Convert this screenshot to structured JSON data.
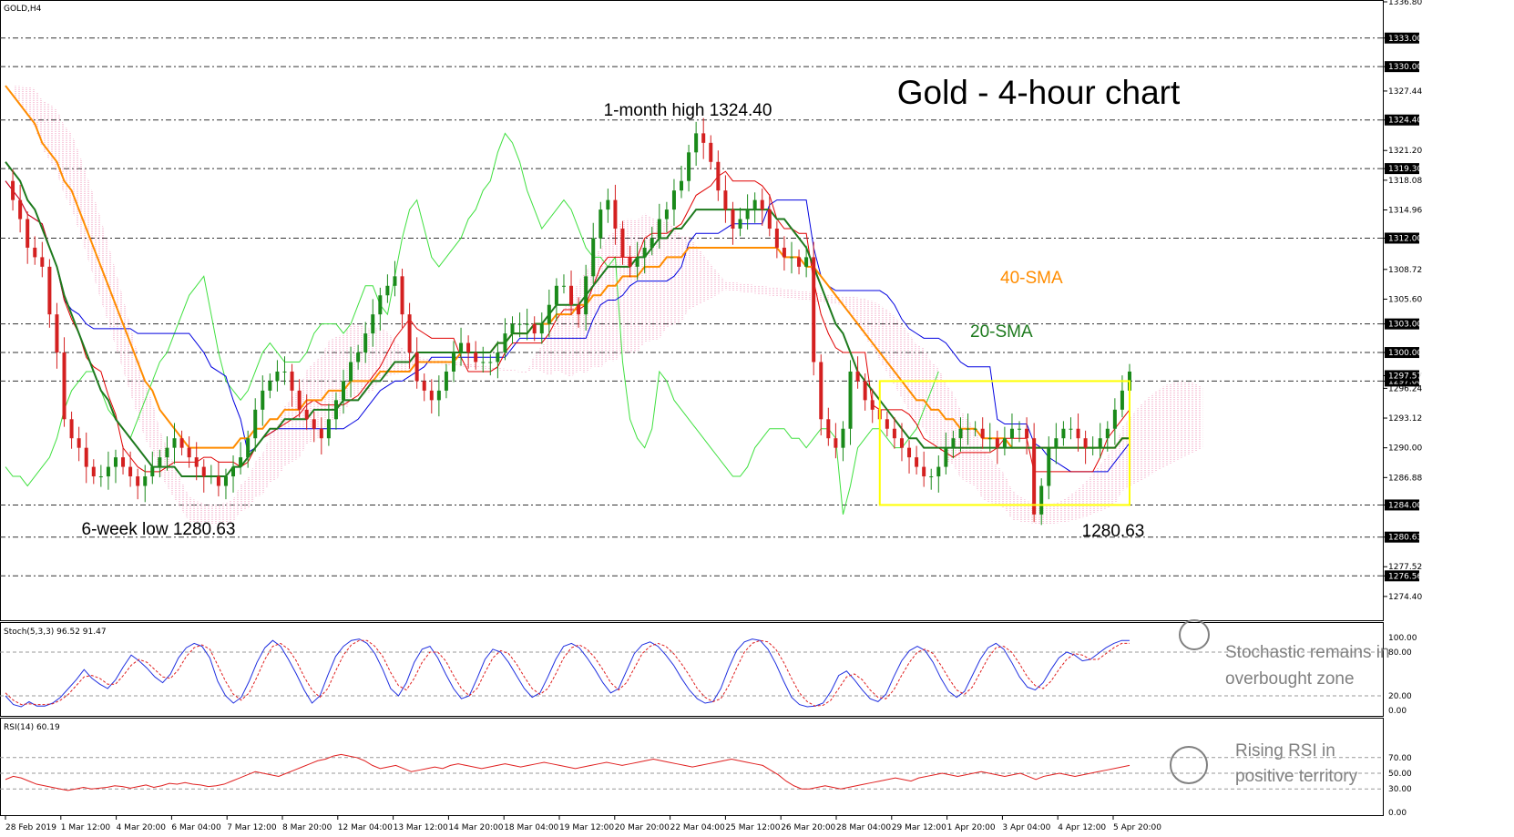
{
  "chart_data": [
    {
      "type": "candlestick",
      "symbol_label": "GOLD,H4",
      "title": "Gold - 4-hour chart",
      "ylim": [
        1272.0,
        1336.8
      ],
      "y_ticks": [
        "1336.80",
        "1333.00",
        "1330.00",
        "1327.44",
        "1324.40",
        "1321.20",
        "1319.30",
        "1318.08",
        "1314.96",
        "1312.00",
        "1308.72",
        "1305.60",
        "1303.00",
        "1300.00",
        "1297.57",
        "1297.00",
        "1296.24",
        "1293.12",
        "1290.00",
        "1286.88",
        "1284.00",
        "1280.63",
        "1277.52",
        "1276.56",
        "1274.40"
      ],
      "levels": [
        1333.0,
        1330.0,
        1324.4,
        1319.3,
        1312.0,
        1303.0,
        1300.0,
        1297.0,
        1284.0,
        1280.63,
        1276.56
      ],
      "x_labels": [
        "28 Feb 2019",
        "1 Mar 12:00",
        "4 Mar 20:00",
        "6 Mar 04:00",
        "7 Mar 12:00",
        "8 Mar 20:00",
        "12 Mar 04:00",
        "13 Mar 12:00",
        "14 Mar 20:00",
        "18 Mar 04:00",
        "19 Mar 12:00",
        "20 Mar 20:00",
        "22 Mar 04:00",
        "25 Mar 12:00",
        "26 Mar 20:00",
        "28 Mar 04:00",
        "29 Mar 12:00",
        "1 Apr 20:00",
        "3 Apr 04:00",
        "4 Apr 12:00",
        "5 Apr 20:00"
      ],
      "series": [
        {
          "name": "Close",
          "values": [
            1318,
            1316,
            1314,
            1311,
            1310,
            1309,
            1304,
            1300,
            1293,
            1291,
            1290,
            1288,
            1287,
            1287,
            1288,
            1289,
            1288,
            1287,
            1286,
            1287,
            1288,
            1289,
            1290,
            1291,
            1290,
            1289,
            1288,
            1287,
            1287,
            1286,
            1287,
            1288,
            1289,
            1291,
            1294,
            1296,
            1297,
            1298,
            1298,
            1296,
            1294,
            1293,
            1292,
            1291,
            1293,
            1295,
            1297,
            1299,
            1300,
            1302,
            1304,
            1306,
            1307,
            1308,
            1304,
            1300,
            1297,
            1296,
            1295,
            1296,
            1298,
            1300,
            1301,
            1300,
            1299,
            1299,
            1299,
            1300,
            1302,
            1303,
            1303,
            1303,
            1302,
            1303,
            1305,
            1307,
            1307,
            1305,
            1304,
            1308,
            1312,
            1315,
            1316,
            1313,
            1310,
            1309,
            1310,
            1311,
            1312,
            1314,
            1315,
            1317,
            1318,
            1321,
            1323,
            1322,
            1320,
            1317,
            1315,
            1313,
            1314,
            1315,
            1316,
            1315,
            1313,
            1311,
            1310,
            1310,
            1309,
            1310,
            1299,
            1293,
            1291,
            1290,
            1292,
            1298,
            1297,
            1295,
            1294,
            1293,
            1292,
            1291,
            1290,
            1289,
            1288,
            1287,
            1287,
            1288,
            1290,
            1291,
            1292,
            1292,
            1292,
            1291,
            1291,
            1290,
            1291,
            1292,
            1292,
            1291,
            1283,
            1286,
            1290,
            1291,
            1292,
            1292,
            1291,
            1290,
            1290,
            1291,
            1292,
            1294,
            1296,
            1298
          ]
        },
        {
          "name": "20-SMA",
          "values": [
            1320,
            1319,
            1318,
            1316,
            1315,
            1313,
            1311,
            1309,
            1306,
            1304,
            1302,
            1300,
            1298,
            1296,
            1295,
            1293,
            1292,
            1291,
            1290,
            1289,
            1288,
            1288,
            1288,
            1288,
            1287,
            1287,
            1287,
            1287,
            1287,
            1287,
            1287,
            1288,
            1288,
            1289,
            1290,
            1291,
            1292,
            1292,
            1293,
            1293,
            1293,
            1293,
            1294,
            1294,
            1294,
            1294,
            1295,
            1295,
            1295,
            1296,
            1297,
            1297,
            1298,
            1299,
            1299,
            1299,
            1300,
            1300,
            1300,
            1300,
            1300,
            1300,
            1300,
            1300,
            1300,
            1300,
            1300,
            1301,
            1301,
            1302,
            1302,
            1302,
            1303,
            1303,
            1304,
            1305,
            1305,
            1305,
            1305,
            1306,
            1307,
            1308,
            1309,
            1309,
            1309,
            1309,
            1310,
            1310,
            1311,
            1312,
            1312,
            1313,
            1313,
            1314,
            1315,
            1315,
            1315,
            1315,
            1315,
            1315,
            1315,
            1315,
            1315,
            1315,
            1315,
            1314,
            1314,
            1313,
            1312,
            1311,
            1309,
            1307,
            1305,
            1303,
            1302,
            1300,
            1298,
            1297,
            1296,
            1295,
            1294,
            1293,
            1292,
            1291,
            1291,
            1290,
            1290,
            1290,
            1290,
            1290,
            1290,
            1290,
            1290,
            1290,
            1290,
            1290,
            1290,
            1290,
            1290,
            1290,
            1290,
            1290,
            1290,
            1290,
            1290,
            1290,
            1290,
            1290,
            1290,
            1290,
            1290,
            1290,
            1291,
            1291
          ]
        },
        {
          "name": "40-SMA",
          "values": [
            1328,
            1327,
            1326,
            1325,
            1324,
            1322,
            1321,
            1320,
            1318,
            1317,
            1315,
            1313,
            1311,
            1309,
            1307,
            1305,
            1303,
            1301,
            1299,
            1297,
            1296,
            1294,
            1293,
            1292,
            1291,
            1290,
            1290,
            1290,
            1290,
            1290,
            1290,
            1290,
            1291,
            1291,
            1292,
            1292,
            1293,
            1293,
            1294,
            1294,
            1294,
            1295,
            1295,
            1295,
            1296,
            1296,
            1296,
            1297,
            1297,
            1297,
            1297,
            1298,
            1298,
            1298,
            1298,
            1298,
            1299,
            1299,
            1299,
            1299,
            1299,
            1299,
            1300,
            1300,
            1300,
            1300,
            1300,
            1301,
            1301,
            1302,
            1302,
            1302,
            1303,
            1303,
            1303,
            1304,
            1304,
            1304,
            1305,
            1305,
            1306,
            1306,
            1307,
            1307,
            1308,
            1308,
            1308,
            1309,
            1309,
            1309,
            1310,
            1310,
            1310,
            1311,
            1311,
            1311,
            1311,
            1311,
            1311,
            1311,
            1311,
            1311,
            1311,
            1311,
            1311,
            1311,
            1310,
            1310,
            1310,
            1309,
            1309,
            1308,
            1307,
            1306,
            1305,
            1304,
            1303,
            1302,
            1301,
            1300,
            1299,
            1298,
            1297,
            1296,
            1295,
            1295,
            1294,
            1294,
            1293,
            1293,
            1292,
            1292,
            1292,
            1291,
            1291,
            1291,
            1291,
            1290,
            1290,
            1290,
            1290,
            1290,
            1290,
            1290,
            1290,
            1290,
            1290,
            1290,
            1290,
            1290,
            1290,
            1290,
            1291,
            1291
          ]
        }
      ],
      "annotations": [
        {
          "text": "1-month high 1324.40"
        },
        {
          "text": "6-week low 1280.63"
        },
        {
          "text": "1280.63"
        },
        {
          "text": "40-SMA"
        },
        {
          "text": "20-SMA"
        }
      ],
      "range_box": {
        "from_index": 119,
        "to_index": 153,
        "y_low": 1284.0,
        "y_high": 1297.0,
        "color": "#ffff00"
      },
      "colors": {
        "up": "#1a8a1a",
        "down": "#d42020",
        "sma20": "#1e7a1e",
        "sma40": "#ff8c00",
        "tenkan": "#e00000",
        "kijun": "#0000e0",
        "chikou": "#40e040",
        "cloud_bull": "#7a7adc",
        "cloud_bear": "#f08cb4",
        "level_line": "#333333"
      },
      "current_price": "1297.57"
    },
    {
      "type": "line",
      "label": "Stoch(5,3,3) 96.52 91.47",
      "ylim": [
        0,
        100
      ],
      "y_ticks": [
        "100.00",
        "80.00",
        "20.00",
        "0.00"
      ],
      "series": [
        {
          "name": "%K",
          "values": [
            20,
            8,
            5,
            12,
            6,
            6,
            10,
            18,
            30,
            42,
            56,
            44,
            36,
            30,
            42,
            60,
            76,
            68,
            58,
            46,
            38,
            50,
            72,
            86,
            92,
            88,
            72,
            40,
            20,
            10,
            18,
            40,
            66,
            86,
            96,
            88,
            70,
            50,
            28,
            10,
            20,
            48,
            74,
            88,
            96,
            98,
            92,
            78,
            56,
            30,
            20,
            38,
            66,
            84,
            88,
            72,
            50,
            30,
            16,
            20,
            44,
            70,
            84,
            80,
            66,
            48,
            30,
            18,
            24,
            46,
            70,
            88,
            92,
            86,
            72,
            56,
            38,
            24,
            30,
            54,
            78,
            90,
            94,
            88,
            76,
            62,
            44,
            28,
            16,
            10,
            12,
            30,
            58,
            82,
            94,
            98,
            96,
            84,
            64,
            40,
            18,
            8,
            5,
            6,
            10,
            26,
            48,
            54,
            42,
            28,
            16,
            12,
            22,
            46,
            68,
            82,
            88,
            82,
            66,
            44,
            26,
            18,
            26,
            48,
            70,
            86,
            92,
            84,
            66,
            46,
            32,
            28,
            38,
            56,
            72,
            80,
            76,
            68,
            70,
            78,
            86,
            92,
            96,
            96
          ]
        },
        {
          "name": "%D",
          "values": [
            24,
            14,
            8,
            9,
            8,
            8,
            9,
            14,
            22,
            34,
            46,
            48,
            44,
            36,
            36,
            48,
            62,
            70,
            66,
            56,
            46,
            44,
            56,
            74,
            86,
            90,
            84,
            62,
            40,
            22,
            14,
            24,
            46,
            70,
            88,
            92,
            84,
            68,
            46,
            28,
            18,
            30,
            54,
            76,
            90,
            96,
            96,
            88,
            74,
            52,
            34,
            28,
            44,
            66,
            80,
            80,
            68,
            48,
            30,
            20,
            30,
            52,
            72,
            82,
            78,
            64,
            46,
            30,
            22,
            30,
            50,
            72,
            86,
            90,
            84,
            72,
            56,
            38,
            28,
            38,
            58,
            78,
            88,
            92,
            88,
            78,
            64,
            48,
            30,
            18,
            12,
            16,
            34,
            58,
            80,
            92,
            96,
            94,
            84,
            66,
            44,
            24,
            12,
            6,
            7,
            14,
            30,
            46,
            50,
            42,
            28,
            18,
            16,
            28,
            48,
            66,
            80,
            84,
            78,
            62,
            44,
            28,
            22,
            32,
            52,
            72,
            86,
            88,
            80,
            64,
            46,
            34,
            30,
            40,
            56,
            70,
            78,
            76,
            70,
            70,
            78,
            86,
            92,
            92
          ]
        }
      ],
      "levels": [
        80,
        20
      ],
      "annotation": "Stochastic remains in overbought zone"
    },
    {
      "type": "line",
      "label": "RSI(14) 60.19",
      "ylim": [
        0,
        100
      ],
      "y_ticks": [
        "70.00",
        "50.00",
        "30.00",
        "0.00"
      ],
      "series": [
        {
          "name": "RSI",
          "values": [
            42,
            46,
            44,
            40,
            36,
            34,
            32,
            30,
            28,
            30,
            32,
            30,
            31,
            32,
            34,
            33,
            31,
            33,
            35,
            32,
            34,
            37,
            36,
            38,
            36,
            35,
            33,
            34,
            36,
            40,
            44,
            48,
            52,
            50,
            48,
            46,
            50,
            54,
            58,
            62,
            66,
            68,
            72,
            74,
            72,
            70,
            66,
            60,
            56,
            58,
            60,
            56,
            52,
            54,
            56,
            58,
            56,
            60,
            62,
            60,
            58,
            56,
            58,
            60,
            62,
            60,
            58,
            60,
            62,
            64,
            62,
            60,
            58,
            56,
            58,
            60,
            62,
            64,
            62,
            60,
            62,
            64,
            66,
            68,
            66,
            64,
            62,
            60,
            58,
            60,
            62,
            64,
            66,
            68,
            66,
            64,
            62,
            60,
            54,
            48,
            40,
            34,
            30,
            30,
            32,
            34,
            32,
            30,
            32,
            34,
            36,
            38,
            40,
            42,
            44,
            42,
            40,
            44,
            46,
            48,
            50,
            48,
            46,
            48,
            50,
            52,
            50,
            48,
            46,
            48,
            50,
            46,
            42,
            46,
            48,
            50,
            48,
            46,
            48,
            50,
            52,
            54,
            56,
            58,
            60
          ]
        }
      ],
      "levels": [
        70,
        50,
        30
      ],
      "annotation": "Rising RSI in positive territory"
    }
  ]
}
